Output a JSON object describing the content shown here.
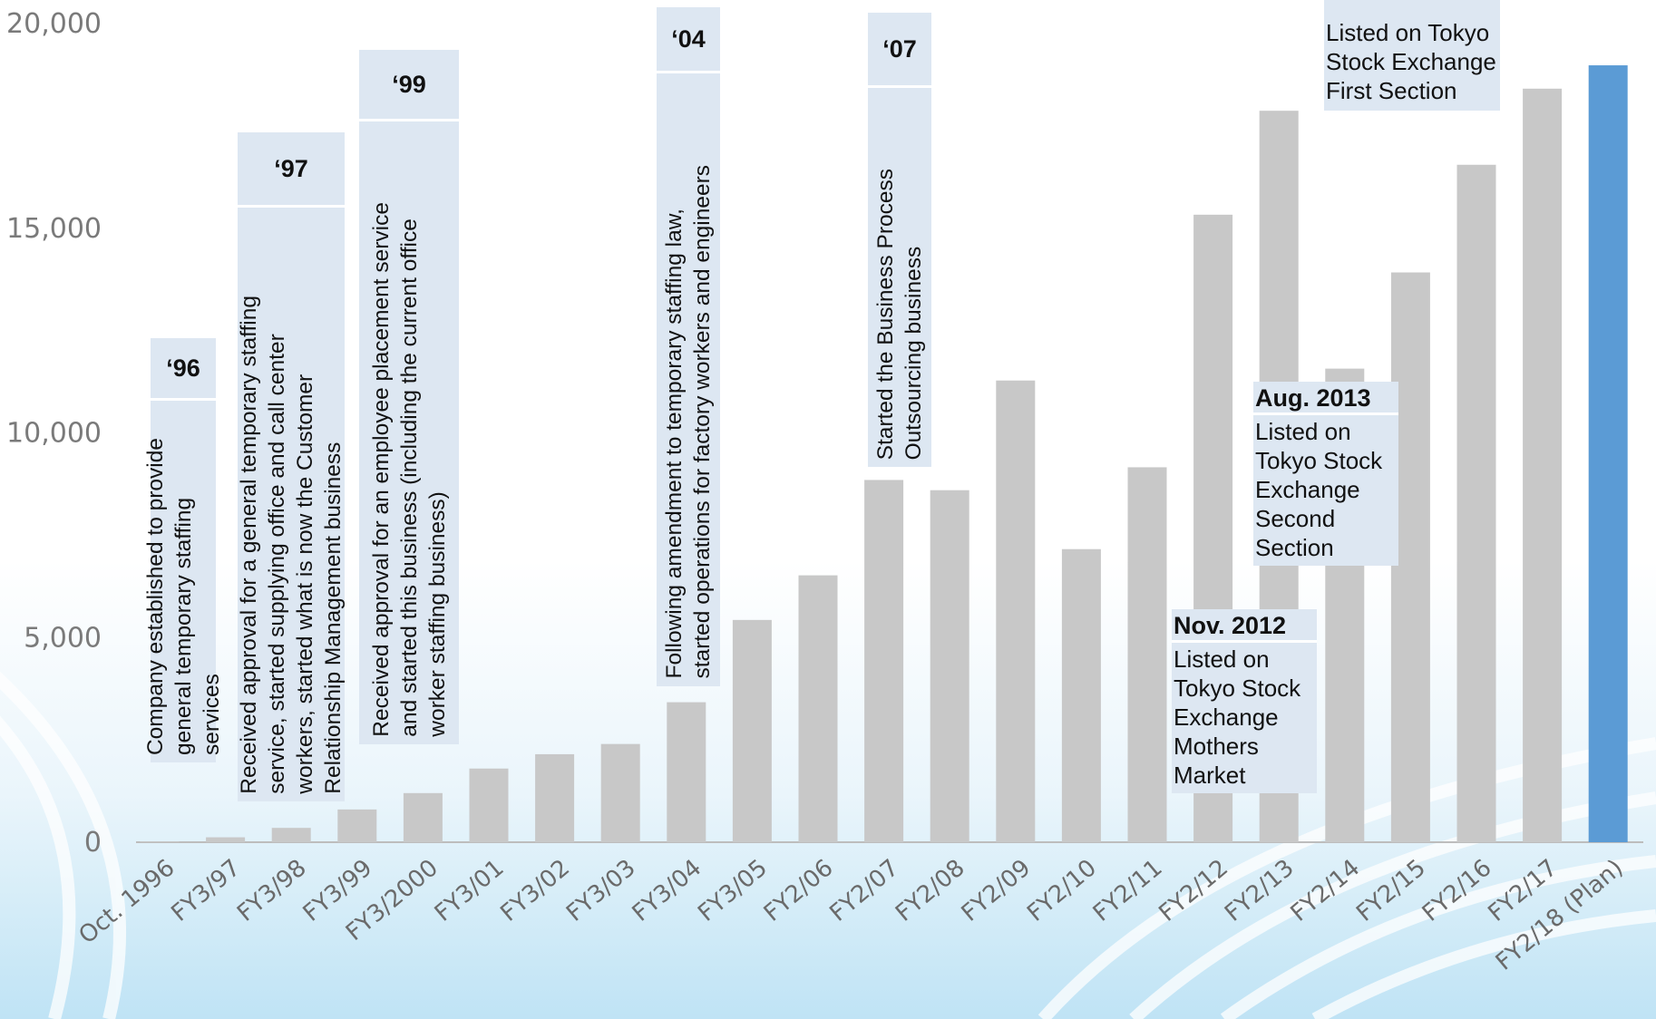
{
  "chart_data": {
    "type": "bar",
    "ylim": [
      0,
      20000
    ],
    "yticks": [
      "0",
      "5,000",
      "10,000",
      "15,000",
      "20,000"
    ],
    "ytick_values": [
      0,
      5000,
      10000,
      15000,
      20000
    ],
    "categories": [
      "Oct. 1996",
      "FY3/97",
      "FY3/98",
      "FY3/99",
      "FY3/2000",
      "FY3/01",
      "FY3/02",
      "FY3/03",
      "FY3/04",
      "FY3/05",
      "FY2/06",
      "FY2/07",
      "FY2/08",
      "FY2/09",
      "FY2/10",
      "FY2/11",
      "FY2/12",
      "FY2/13",
      "FY2/14",
      "FY2/15",
      "FY2/16",
      "FY2/17",
      "FY2/18 (Plan)"
    ],
    "values": [
      20,
      120,
      350,
      800,
      1200,
      1800,
      2150,
      2400,
      3420,
      5430,
      6520,
      8850,
      8600,
      11280,
      7160,
      9160,
      15330,
      17870,
      11570,
      13920,
      16550,
      18410,
      18980
    ],
    "bar_color": "#c8c8c8",
    "plan_color": "#5b9bd5",
    "grid": false,
    "annotations": [
      {
        "year": "‘96",
        "text": "Company established to provide\ngeneral temporary staffing\nservices"
      },
      {
        "year": "‘97",
        "text": "Received approval for a general temporary staffing\nservice, started supplying office and call center\nworkers, started what is now the Customer\nRelationship Management business"
      },
      {
        "year": "‘99",
        "text": "Received approval for an employee placement service\nand started this business (including the current office\nworker staffing business)"
      },
      {
        "year": "‘04",
        "text": "Following amendment to temporary staffing law,\nstarted operations for factory workers and engineers"
      },
      {
        "year": "‘07",
        "text": "Started the Business Process\nOutsourcing business"
      }
    ],
    "listings": [
      {
        "title": "Nov. 2012",
        "text": "Listed on\nTokyo Stock\nExchange\nMothers\nMarket"
      },
      {
        "title": "Aug. 2013",
        "text": "Listed on\nTokyo Stock\nExchange\nSecond\nSection"
      },
      {
        "title": "",
        "text": "Listed on Tokyo\nStock Exchange\nFirst Section"
      }
    ]
  }
}
